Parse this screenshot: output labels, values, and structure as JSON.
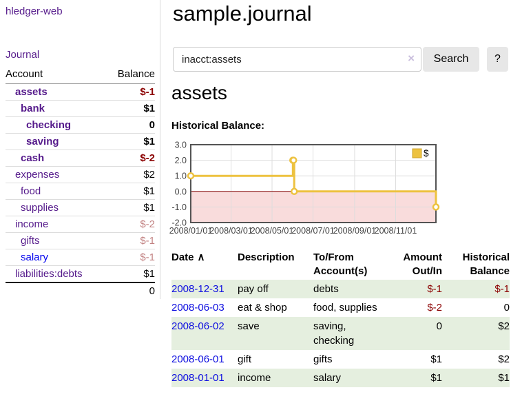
{
  "app": {
    "title": "hledger-web"
  },
  "sidebar": {
    "journal_label": "Journal",
    "accounts_table": {
      "headers": {
        "account": "Account",
        "balance": "Balance"
      },
      "rows": [
        {
          "name": "assets",
          "balance": "$-1",
          "indent": 1,
          "bold": true,
          "link": "visited",
          "tone": "negative"
        },
        {
          "name": "bank",
          "balance": "$1",
          "indent": 2,
          "bold": true,
          "link": "visited",
          "tone": "normal"
        },
        {
          "name": "checking",
          "balance": "0",
          "indent": 3,
          "bold": true,
          "link": "visited",
          "tone": "normal"
        },
        {
          "name": "saving",
          "balance": "$1",
          "indent": 3,
          "bold": true,
          "link": "visited",
          "tone": "normal"
        },
        {
          "name": "cash",
          "balance": "$-2",
          "indent": 2,
          "bold": true,
          "link": "visited",
          "tone": "negative"
        },
        {
          "name": "expenses",
          "balance": "$2",
          "indent": 1,
          "bold": false,
          "link": "visited",
          "tone": "normal"
        },
        {
          "name": "food",
          "balance": "$1",
          "indent": 2,
          "bold": false,
          "link": "visited",
          "tone": "normal"
        },
        {
          "name": "supplies",
          "balance": "$1",
          "indent": 2,
          "bold": false,
          "link": "visited",
          "tone": "normal"
        },
        {
          "name": "income",
          "balance": "$-2",
          "indent": 1,
          "bold": false,
          "link": "visited",
          "tone": "negative_dim"
        },
        {
          "name": "gifts",
          "balance": "$-1",
          "indent": 2,
          "bold": false,
          "link": "visited",
          "tone": "negative_dim"
        },
        {
          "name": "salary",
          "balance": "$-1",
          "indent": 2,
          "bold": false,
          "link": "unvisited",
          "tone": "negative_dim"
        },
        {
          "name": "liabilities:debts",
          "balance": "$1",
          "indent": 1,
          "bold": false,
          "link": "visited",
          "tone": "normal"
        }
      ],
      "total": "0"
    }
  },
  "header": {
    "title": "sample.journal"
  },
  "search": {
    "value": "inacct:assets",
    "button_label": "Search",
    "help_label": "?",
    "icons": {
      "clear": "×"
    }
  },
  "account_page": {
    "title": "assets",
    "chart_label": "Historical Balance:"
  },
  "chart_data": {
    "type": "line",
    "step": true,
    "title": "Historical Balance",
    "series": [
      {
        "name": "$",
        "color": "#edc240",
        "points": [
          [
            "2008-01-01",
            1
          ],
          [
            "2008-06-01",
            2
          ],
          [
            "2008-06-02",
            2
          ],
          [
            "2008-06-03",
            0
          ],
          [
            "2008-12-31",
            -1
          ]
        ]
      }
    ],
    "xlim": [
      "2008-01-01",
      "2008-12-31"
    ],
    "ylim": [
      -2,
      3
    ],
    "x_ticks": [
      "2008-01-01",
      "2008-03-01",
      "2008-05-01",
      "2008-07-01",
      "2008-09-01",
      "2008-11-01"
    ],
    "x_tick_labels": [
      "2008/01/01",
      "2008/03/01",
      "2008/05/01",
      "2008/07/01",
      "2008/09/01",
      "2008/11/01"
    ],
    "y_ticks": [
      3.0,
      2.0,
      1.0,
      0.0,
      -1.0,
      -2.0
    ],
    "grid": true,
    "legend": {
      "position": "top-right",
      "items": [
        {
          "label": "$",
          "color": "#edc240"
        }
      ]
    },
    "negative_region_color": "#f9dcdc",
    "zero_line_color": "#800000",
    "border_color": "#545454",
    "grid_color": "#dddddd",
    "tick_label_color": "#444444"
  },
  "register_table": {
    "headers": [
      {
        "label": "Date",
        "align": "left",
        "sort_icon": "∧"
      },
      {
        "label": "Description",
        "align": "left"
      },
      {
        "label": "To/From Account(s)",
        "align": "left"
      },
      {
        "label": "Amount Out/In",
        "align": "right"
      },
      {
        "label": "Historical Balance",
        "align": "right"
      }
    ],
    "rows": [
      {
        "date": "2008-12-31",
        "description": "pay off",
        "accounts": "debts",
        "amount": "$-1",
        "balance": "$-1"
      },
      {
        "date": "2008-06-03",
        "description": "eat & shop",
        "accounts": "food, supplies",
        "amount": "$-2",
        "balance": "0"
      },
      {
        "date": "2008-06-02",
        "description": "save",
        "accounts": "saving, checking",
        "amount": "0",
        "balance": "$2"
      },
      {
        "date": "2008-06-01",
        "description": "gift",
        "accounts": "gifts",
        "amount": "$1",
        "balance": "$2"
      },
      {
        "date": "2008-01-01",
        "description": "income",
        "accounts": "salary",
        "amount": "$1",
        "balance": "$1"
      }
    ]
  },
  "colors": {
    "link_visited": "#551a8b",
    "link_unvisited": "#0000ee",
    "negative": "#8b0000",
    "negative_dim": "#c28282",
    "row_stripe": "#e5efdf",
    "series_accent": "#edc240"
  }
}
